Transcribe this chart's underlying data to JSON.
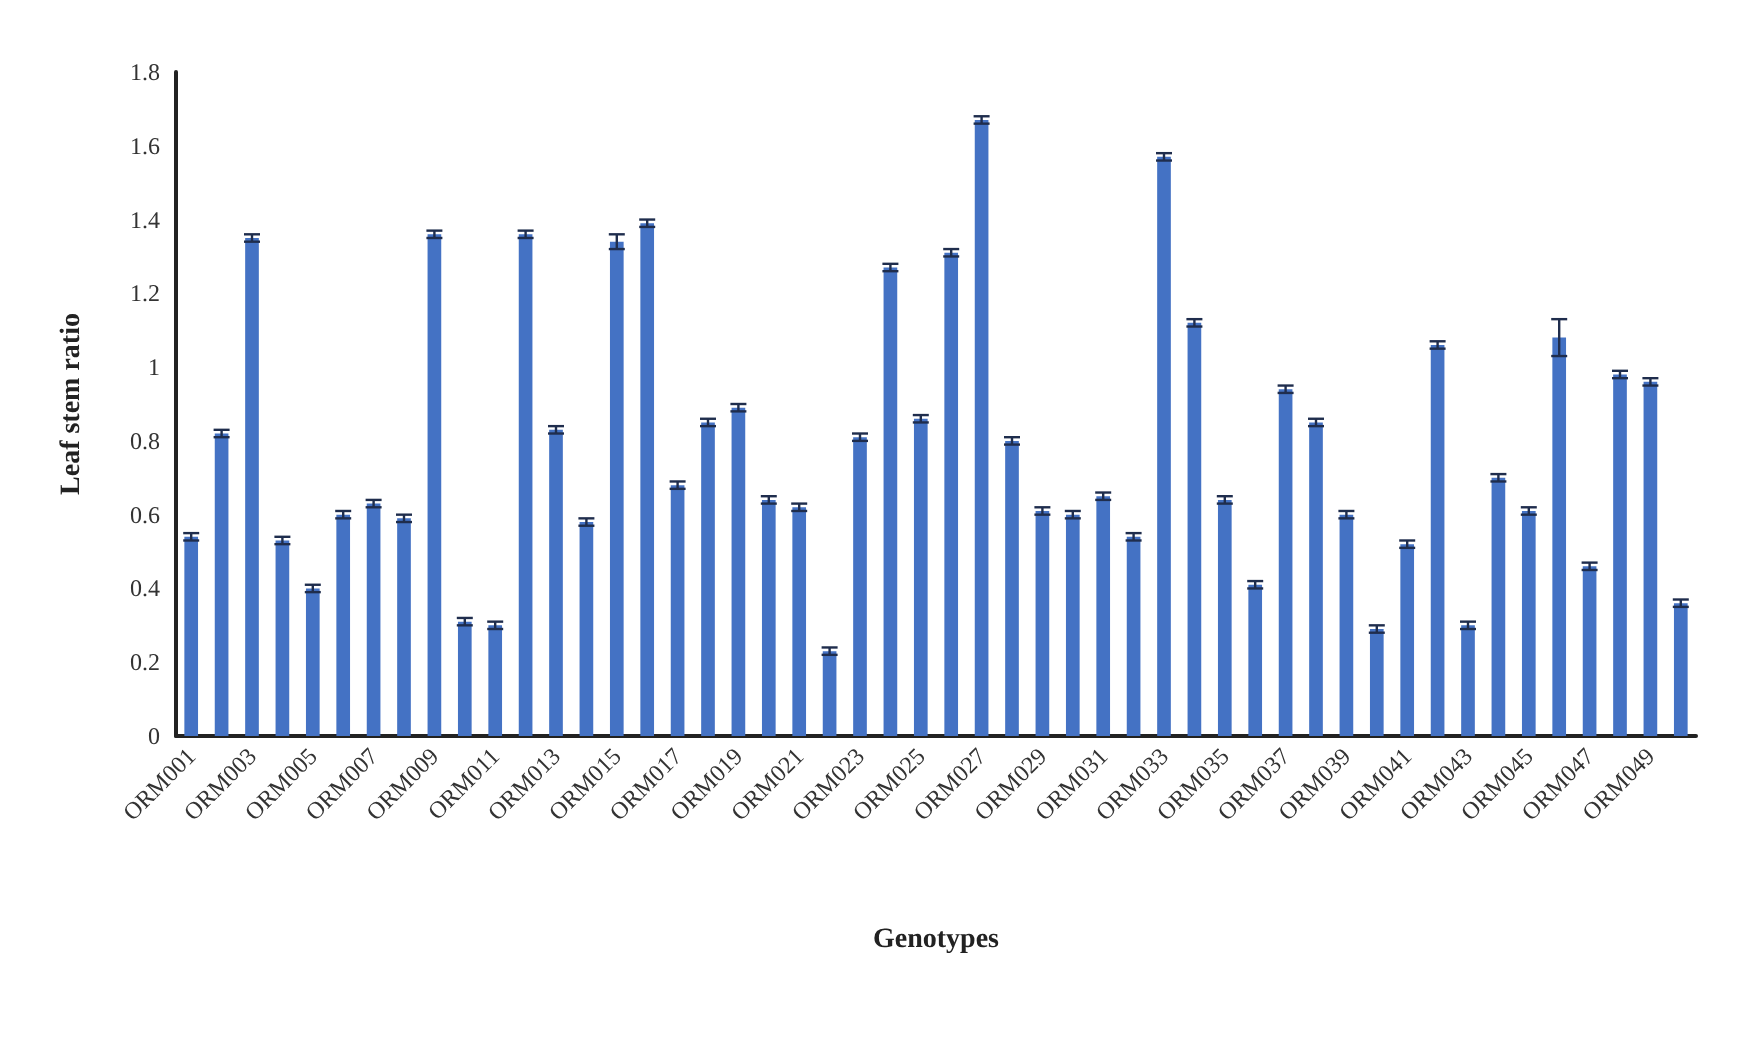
{
  "chart_data": {
    "type": "bar",
    "xlabel": "Genotypes",
    "ylabel": "Leaf stem ratio",
    "categories": [
      "ORM001",
      null,
      "ORM003",
      null,
      "ORM005",
      null,
      "ORM007",
      null,
      "ORM009",
      null,
      "ORM011",
      null,
      "ORM013",
      null,
      "ORM015",
      null,
      "ORM017",
      null,
      "ORM019",
      null,
      "ORM021",
      null,
      "ORM023",
      null,
      "ORM025",
      null,
      "ORM027",
      null,
      "ORM029",
      null,
      "ORM031",
      null,
      "ORM033",
      null,
      "ORM035",
      null,
      "ORM037",
      null,
      "ORM039",
      null,
      "ORM041",
      null,
      "ORM043",
      null,
      "ORM045",
      null,
      "ORM047",
      null,
      "ORM049",
      null
    ],
    "values": [
      0.54,
      0.82,
      1.35,
      0.53,
      0.4,
      0.6,
      0.63,
      0.59,
      1.36,
      0.31,
      0.3,
      1.36,
      0.83,
      0.58,
      1.34,
      1.39,
      0.68,
      0.85,
      0.89,
      0.64,
      0.62,
      0.23,
      0.81,
      1.27,
      0.86,
      1.31,
      1.67,
      0.8,
      0.61,
      0.6,
      0.65,
      0.54,
      1.57,
      1.12,
      0.64,
      0.41,
      0.94,
      0.85,
      0.6,
      0.29,
      0.52,
      1.06,
      0.3,
      0.7,
      0.61,
      1.08,
      0.46,
      0.98,
      0.96,
      0.36
    ],
    "errors": [
      0.01,
      0.01,
      0.01,
      0.01,
      0.01,
      0.01,
      0.01,
      0.01,
      0.01,
      0.01,
      0.01,
      0.01,
      0.01,
      0.01,
      0.02,
      0.01,
      0.01,
      0.01,
      0.01,
      0.01,
      0.01,
      0.01,
      0.01,
      0.01,
      0.01,
      0.01,
      0.01,
      0.01,
      0.01,
      0.01,
      0.01,
      0.01,
      0.01,
      0.01,
      0.01,
      0.01,
      0.01,
      0.01,
      0.01,
      0.01,
      0.01,
      0.01,
      0.01,
      0.01,
      0.01,
      0.05,
      0.01,
      0.01,
      0.01,
      0.01
    ],
    "color": "#4472c4",
    "ylim": [
      0,
      1.8
    ],
    "yticks": [
      0,
      0.2,
      0.4,
      0.6,
      0.8,
      1,
      1.2,
      1.4,
      1.6,
      1.8
    ],
    "grid": false
  }
}
